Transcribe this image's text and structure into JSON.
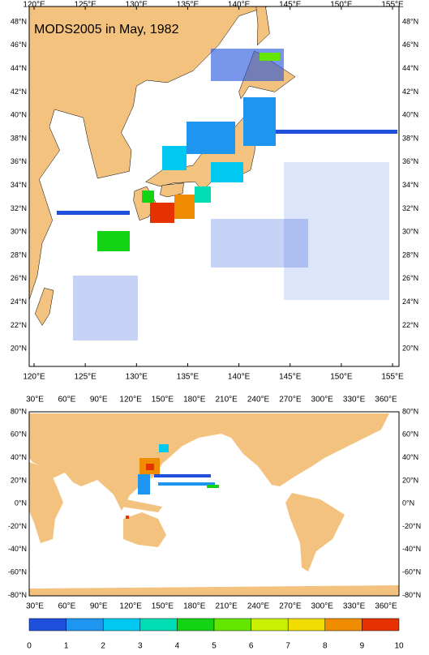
{
  "title": "MODS2005 in May, 1982",
  "top_map": {
    "lon_labels": [
      "120°E",
      "125°E",
      "130°E",
      "135°E",
      "140°E",
      "145°E",
      "150°E",
      "155°E"
    ],
    "lat_labels": [
      "48°N",
      "46°N",
      "44°N",
      "42°N",
      "40°N",
      "38°N",
      "36°N",
      "34°N",
      "32°N",
      "30°N",
      "28°N",
      "26°N",
      "24°N",
      "22°N",
      "20°N"
    ]
  },
  "bottom_map": {
    "lon_labels": [
      "30°E",
      "60°E",
      "90°E",
      "120°E",
      "150°E",
      "180°E",
      "210°E",
      "240°E",
      "270°E",
      "300°E",
      "330°E",
      "360°E"
    ],
    "lat_labels": [
      "80°N",
      "60°N",
      "40°N",
      "20°N",
      "0°N",
      "-20°N",
      "-40°N",
      "-60°N",
      "-80°N"
    ]
  },
  "colorbar": {
    "labels": [
      "0",
      "1",
      "2",
      "3",
      "4",
      "5",
      "6",
      "7",
      "8",
      "9",
      "10"
    ],
    "colors": [
      "#1e50dc",
      "#1e96f0",
      "#00c8f0",
      "#00dcb4",
      "#14d214",
      "#64e600",
      "#c8f000",
      "#f0dc00",
      "#f08c00",
      "#e63200"
    ]
  }
}
